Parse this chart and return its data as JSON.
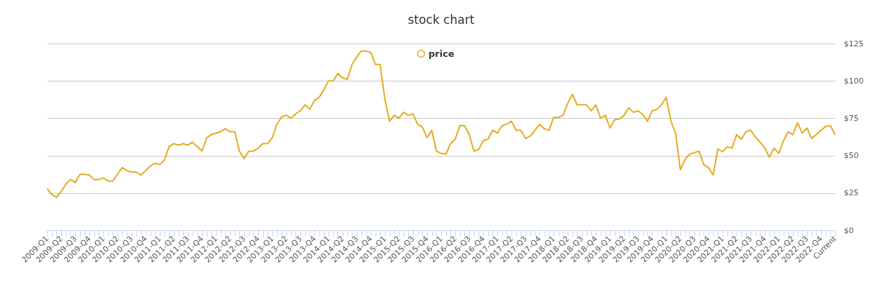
{
  "chart_data": {
    "type": "line",
    "title": "stock chart",
    "categories": [
      "2009-Q1",
      null,
      null,
      "2009-Q2",
      null,
      null,
      "2009-Q3",
      null,
      null,
      "2009-Q4",
      null,
      null,
      "2010-Q1",
      null,
      null,
      "2010-Q2",
      null,
      null,
      "2010-Q3",
      null,
      null,
      "2010-Q4",
      null,
      null,
      "2011-Q1",
      null,
      null,
      "2011-Q2",
      null,
      null,
      "2011-Q3",
      null,
      null,
      "2011-Q4",
      null,
      null,
      "2012-Q1",
      null,
      null,
      "2012-Q2",
      null,
      null,
      "2012-Q3",
      null,
      null,
      "2012-Q4",
      null,
      null,
      "2013-Q1",
      null,
      null,
      "2013-Q2",
      null,
      null,
      "2013-Q3",
      null,
      null,
      "2013-Q4",
      null,
      null,
      "2014-Q1",
      null,
      null,
      "2014-Q2",
      null,
      null,
      "2014-Q3",
      null,
      null,
      "2014-Q4",
      null,
      null,
      "2015-Q1",
      null,
      null,
      "2015-Q2",
      null,
      null,
      "2015-Q3",
      null,
      null,
      "2015-Q4",
      null,
      null,
      "2016-Q1",
      null,
      null,
      "2016-Q2",
      null,
      null,
      "2016-Q3",
      null,
      null,
      "2016-Q4",
      null,
      null,
      "2017-Q1",
      null,
      null,
      "2017-Q2",
      null,
      null,
      "2017-Q3",
      null,
      null,
      "2017-Q4",
      null,
      null,
      "2018-Q1",
      null,
      null,
      "2018-Q2",
      null,
      null,
      "2018-Q3",
      null,
      null,
      "2018-Q4",
      null,
      null,
      "2019-Q1",
      null,
      null,
      "2019-Q2",
      null,
      null,
      "2019-Q3",
      null,
      null,
      "2019-Q4",
      null,
      null,
      "2020-Q1",
      null,
      null,
      "2020-Q2",
      null,
      null,
      "2020-Q3",
      null,
      null,
      "2020-Q4",
      null,
      null,
      "2021-Q1",
      null,
      null,
      "2021-Q2",
      null,
      null,
      "2021-Q3",
      null,
      null,
      "2021-Q4",
      null,
      null,
      "2022-Q1",
      null,
      null,
      "2022-Q2",
      null,
      null,
      "2022-Q3",
      null,
      null,
      "2022-Q4",
      null,
      null,
      "Current"
    ],
    "series": [
      {
        "name": "price",
        "color": "#e3ac1c",
        "values": [
          28,
          24,
          22,
          26,
          31,
          34,
          32,
          37.5,
          37.5,
          37,
          34,
          34,
          35,
          33,
          33,
          37.5,
          42,
          40,
          39,
          39,
          37,
          40,
          43,
          45,
          44,
          47,
          56,
          58,
          57,
          58,
          57,
          59,
          56,
          53,
          62,
          64,
          65,
          66,
          68,
          66,
          66,
          53,
          48,
          53,
          53,
          55,
          58,
          58,
          62,
          71,
          76,
          77,
          75,
          78,
          80,
          84,
          81,
          87,
          89,
          94,
          100,
          100,
          105,
          102,
          101,
          111,
          116,
          120,
          120,
          119,
          111,
          111,
          88,
          73,
          77,
          75,
          79,
          77,
          78,
          71,
          69,
          62,
          67,
          53,
          51.5,
          51,
          58,
          61,
          70,
          70,
          64,
          53,
          54,
          60,
          61,
          67,
          65,
          70,
          71,
          73,
          67,
          67,
          61.5,
          63,
          67,
          71,
          68,
          67,
          75.5,
          75.5,
          77,
          85,
          91,
          84,
          84,
          84,
          80,
          84,
          75,
          77,
          68.5,
          74,
          74.5,
          77,
          82,
          79,
          80,
          77.5,
          73,
          80,
          81,
          84,
          89,
          73,
          65,
          40.5,
          47.5,
          51,
          52,
          53,
          44,
          42,
          37,
          54.5,
          52.5,
          56,
          55,
          64,
          61,
          66,
          67,
          62.5,
          59,
          55,
          49,
          55,
          51.5,
          60,
          66,
          64,
          72,
          65,
          68.5,
          61.5,
          64,
          67,
          69.5,
          70,
          64
        ]
      }
    ],
    "ylim": [
      0,
      125
    ],
    "yticks": [
      {
        "value": 0,
        "label": "$0"
      },
      {
        "value": 25,
        "label": "$25"
      },
      {
        "value": 50,
        "label": "$50"
      },
      {
        "value": 75,
        "label": "$75"
      },
      {
        "value": 100,
        "label": "$100"
      },
      {
        "value": 125,
        "label": "$125"
      }
    ],
    "grid": "y",
    "legend": "top",
    "marker": "none",
    "line_style": "solid"
  }
}
